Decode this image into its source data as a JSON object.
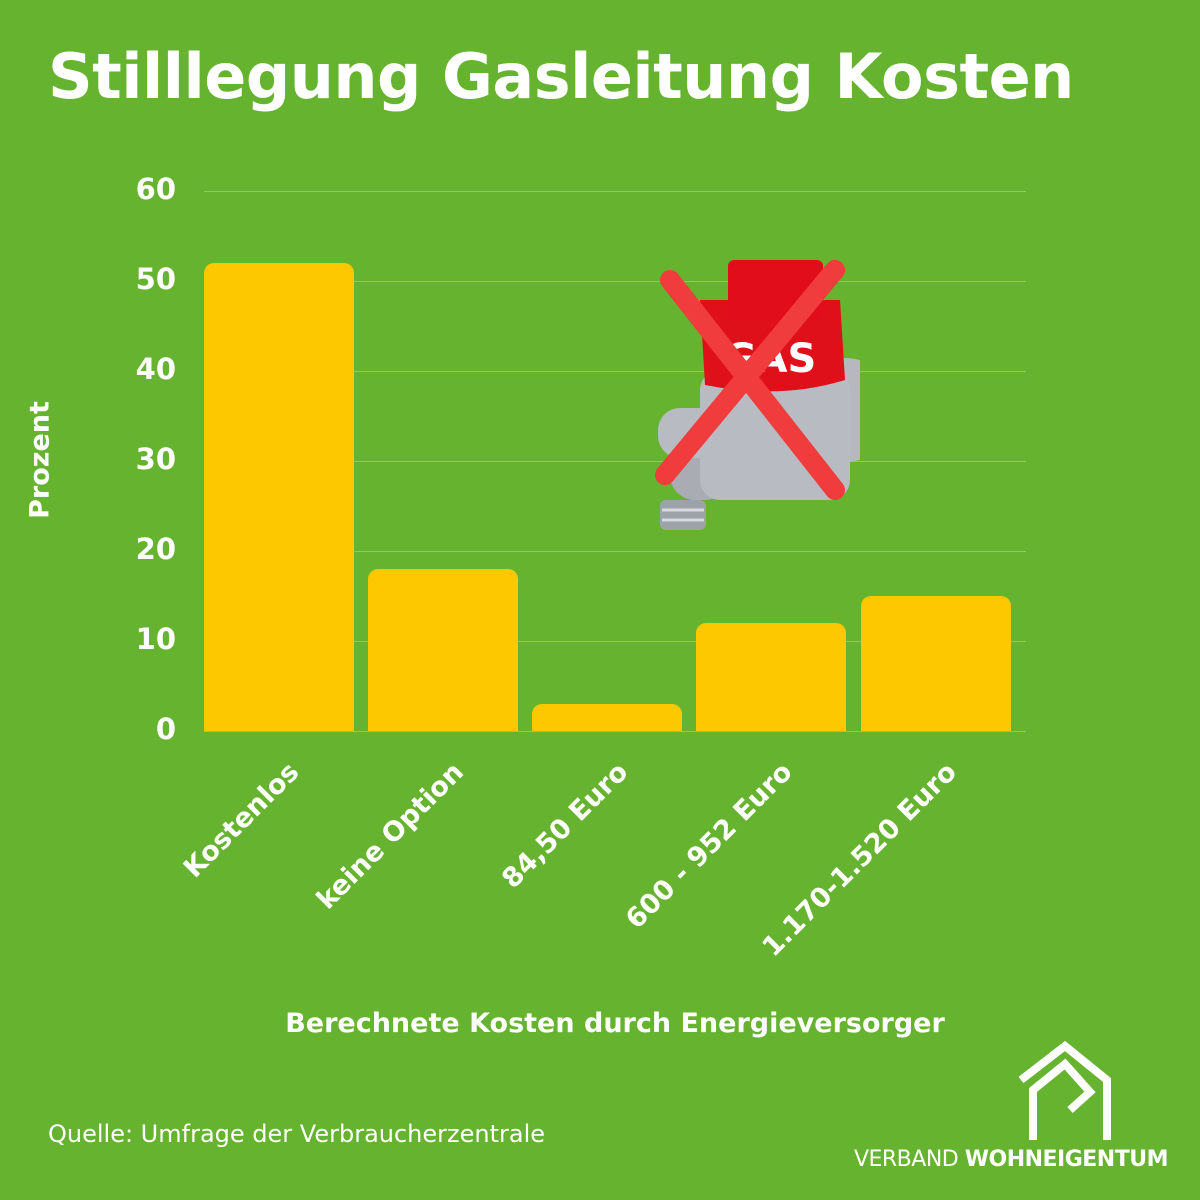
{
  "title": "Stilllegung Gasleitung Kosten",
  "ylabel": "Prozent",
  "xlabel": "Berechnete Kosten durch Energieversorger",
  "source": "Quelle: Umfrage der Verbraucherzentrale",
  "logo": {
    "regular": "VERBAND ",
    "bold": "WOHNEIGENTUM",
    "icon": "house-icon"
  },
  "illustration": {
    "icon": "gas-valve-crossed-icon",
    "label": "GAS"
  },
  "yticks": [
    "60",
    "50",
    "40",
    "30",
    "20",
    "10",
    "0"
  ],
  "colors": {
    "background": "#65b32e",
    "bar": "#fdc800",
    "text": "#ffffff",
    "cross": "#f03c3c"
  },
  "chart_data": {
    "type": "bar",
    "title": "Stilllegung Gasleitung Kosten",
    "xlabel": "Berechnete Kosten durch Energieversorger",
    "ylabel": "Prozent",
    "categories": [
      "Kostenlos",
      "keine Option",
      "84,50 Euro",
      "600 - 952 Euro",
      "1.170-1.520 Euro"
    ],
    "values": [
      52,
      18,
      3,
      12,
      15
    ],
    "ylim": [
      0,
      60
    ],
    "yticks": [
      0,
      10,
      20,
      30,
      40,
      50,
      60
    ],
    "grid": true,
    "legend": null,
    "annotations": [
      "Quelle: Umfrage der Verbraucherzentrale"
    ]
  }
}
